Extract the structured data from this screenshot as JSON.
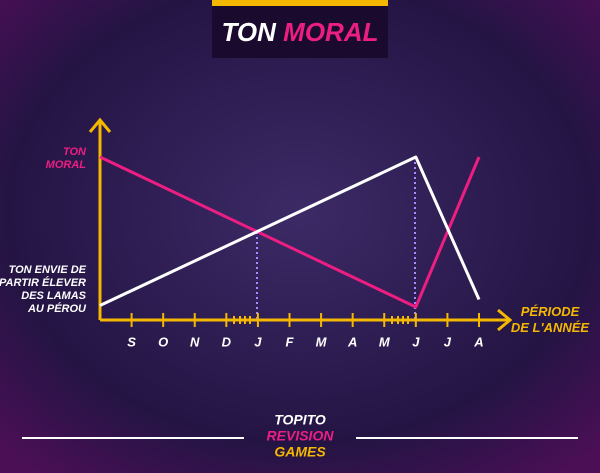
{
  "chart_data": {
    "type": "line",
    "title": [
      "TON",
      "MORAL"
    ],
    "xlabel": [
      "PÉRIODE",
      "DE L'ANNÉE"
    ],
    "ylabels": {
      "top": [
        "TON",
        "MORAL"
      ],
      "bottom": [
        "TON ENVIE DE",
        "PARTIR ÉLEVER",
        "DES LAMAS",
        "AU PÉROU"
      ]
    },
    "x": [
      -1,
      9,
      11
    ],
    "xlim": [
      -1,
      11
    ],
    "xticks": [
      {
        "value": 0,
        "label": "S"
      },
      {
        "value": 1,
        "label": "O"
      },
      {
        "value": 2,
        "label": "N"
      },
      {
        "value": 3,
        "label": "D"
      },
      {
        "value": 4,
        "label": "J"
      },
      {
        "value": 5,
        "label": "F"
      },
      {
        "value": 6,
        "label": "M"
      },
      {
        "value": 7,
        "label": "A"
      },
      {
        "value": 8,
        "label": "M"
      },
      {
        "value": 9,
        "label": "J"
      },
      {
        "value": 10,
        "label": "J"
      },
      {
        "value": 11,
        "label": "A"
      }
    ],
    "ylim": [
      0,
      100
    ],
    "series": [
      {
        "name": "TON MORAL",
        "color": "#ec1e82",
        "values": [
          100,
          0,
          100
        ]
      },
      {
        "name": "TON ENVIE DE PARTIR ÉLEVER DES LAMAS AU PÉROU",
        "color": "#ffffff",
        "values": [
          1,
          100,
          5
        ]
      }
    ],
    "footer": [
      "TOPITO",
      "REVISION",
      "GAMES"
    ]
  }
}
